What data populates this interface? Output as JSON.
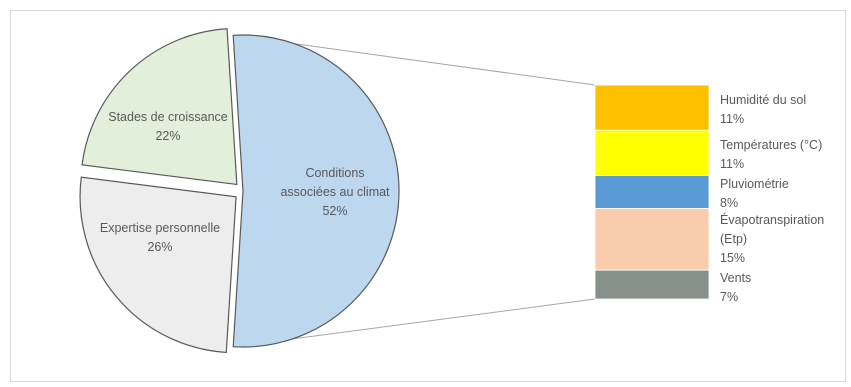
{
  "chart_data": {
    "type": "bar-of-pie",
    "title": "",
    "pie": {
      "slices": [
        {
          "label_lines": [
            "Conditions",
            "associées au climat"
          ],
          "value_label": "52%",
          "value": 52,
          "color": "#bdd7ee",
          "exploded": false
        },
        {
          "label_lines": [
            "Expertise personnelle"
          ],
          "value_label": "26%",
          "value": 26,
          "color": "#ededed",
          "exploded": true
        },
        {
          "label_lines": [
            "Stades de croissance"
          ],
          "value_label": "22%",
          "value": 22,
          "color": "#e2efda",
          "exploded": true
        }
      ]
    },
    "bar": {
      "segments": [
        {
          "label_lines": [
            "Humidité du sol"
          ],
          "value_label": "11%",
          "value": 11,
          "color": "#ffc000"
        },
        {
          "label_lines": [
            "Températures (°C)"
          ],
          "value_label": "11%",
          "value": 11,
          "color": "#ffff00"
        },
        {
          "label_lines": [
            "Pluviométrie"
          ],
          "value_label": "8%",
          "value": 8,
          "color": "#5b9bd5"
        },
        {
          "label_lines": [
            "Évapotranspiration",
            "(Etp)"
          ],
          "value_label": "15%",
          "value": 15,
          "color": "#f8cbad"
        },
        {
          "label_lines": [
            "Vents"
          ],
          "value_label": "7%",
          "value": 7,
          "color": "#849089"
        }
      ]
    },
    "connector_color": "#a6a6a6",
    "slice_border": "#ffffff",
    "outline_color": "#595959",
    "label_color": "#595959"
  }
}
